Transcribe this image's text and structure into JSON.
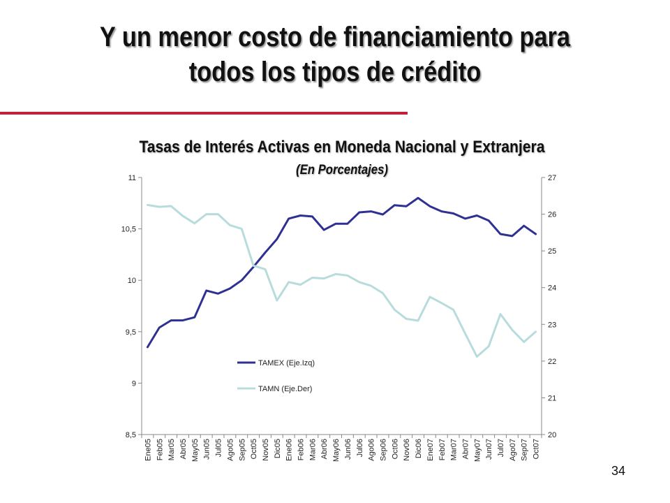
{
  "slide": {
    "title_line1": "Y un menor costo de financiamiento para",
    "title_line2": "todos los tipos de crédito",
    "page_number": "34"
  },
  "chart_data": {
    "type": "line",
    "title": "Tasas de Interés Activas en Moneda Nacional y Extranjera",
    "subtitle": "(En Porcentajes)",
    "categories": [
      "Ene05",
      "Feb05",
      "Mar05",
      "Abr05",
      "May05",
      "Jun05",
      "Jul05",
      "Ago05",
      "Sep05",
      "Oct05",
      "Nov05",
      "Dic05",
      "Ene06",
      "Feb06",
      "Mar06",
      "Abr06",
      "May06",
      "Jun06",
      "Jul06",
      "Ago06",
      "Sep06",
      "Oct06",
      "Nov06",
      "Dic06",
      "Ene07",
      "Feb07",
      "Mar07",
      "Abr07",
      "May07",
      "Jun07",
      "Jul07",
      "Ago07",
      "Sep07",
      "Oct07"
    ],
    "y_left": {
      "min": 8.5,
      "max": 11,
      "ticks": [
        "8,5",
        "9",
        "9,5",
        "10",
        "10,5",
        "11"
      ],
      "tick_values": [
        8.5,
        9,
        9.5,
        10,
        10.5,
        11
      ]
    },
    "y_right": {
      "min": 20,
      "max": 27,
      "ticks": [
        "20",
        "21",
        "22",
        "23",
        "24",
        "25",
        "26",
        "27"
      ],
      "tick_values": [
        20,
        21,
        22,
        23,
        24,
        25,
        26,
        27
      ]
    },
    "legend_position": "center-left",
    "grid": false,
    "series": [
      {
        "name": "TAMEX (Eje.Izq)",
        "axis": "left",
        "color": "#2e3192",
        "values": [
          9.35,
          9.54,
          9.61,
          9.61,
          9.64,
          9.9,
          9.87,
          9.92,
          10.0,
          10.13,
          10.27,
          10.4,
          10.6,
          10.63,
          10.62,
          10.49,
          10.55,
          10.55,
          10.66,
          10.67,
          10.64,
          10.73,
          10.72,
          10.8,
          10.72,
          10.67,
          10.65,
          10.6,
          10.63,
          10.58,
          10.45,
          10.43,
          10.53,
          10.45
        ]
      },
      {
        "name": "TAMN (Eje.Der)",
        "axis": "right",
        "color": "#b8dcdc",
        "values": [
          26.25,
          26.2,
          26.22,
          25.95,
          25.75,
          26.0,
          26.0,
          25.7,
          25.6,
          24.6,
          24.5,
          23.65,
          24.15,
          24.08,
          24.27,
          24.25,
          24.37,
          24.33,
          24.15,
          24.05,
          23.85,
          23.4,
          23.15,
          23.1,
          23.75,
          23.58,
          23.4,
          22.75,
          22.12,
          22.4,
          23.28,
          22.85,
          22.52,
          22.8
        ]
      }
    ]
  }
}
